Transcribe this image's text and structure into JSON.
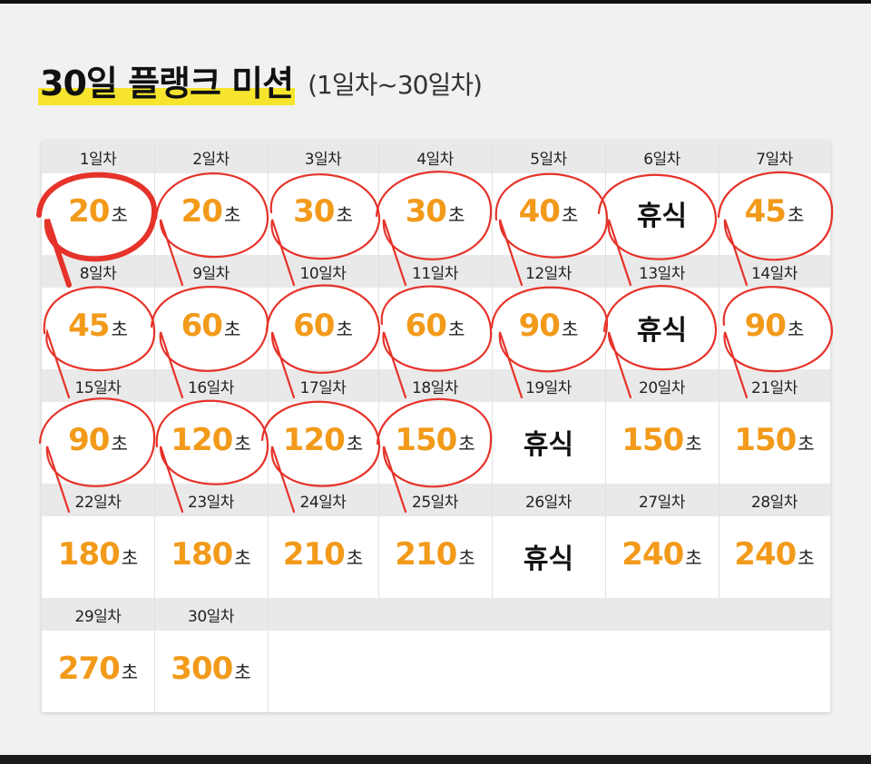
{
  "title": {
    "main": "30일 플랭크 미션",
    "sub": "(1일차~30일차)"
  },
  "unit": "초",
  "colors": {
    "accent": "#f29a1a",
    "highlight": "#f6e52c",
    "pen": "#e5332a"
  },
  "days": [
    {
      "label": "1일차",
      "value": "20"
    },
    {
      "label": "2일차",
      "value": "20"
    },
    {
      "label": "3일차",
      "value": "30"
    },
    {
      "label": "4일차",
      "value": "30"
    },
    {
      "label": "5일차",
      "value": "40"
    },
    {
      "label": "6일차",
      "rest": "휴식"
    },
    {
      "label": "7일차",
      "value": "45"
    },
    {
      "label": "8일차",
      "value": "45"
    },
    {
      "label": "9일차",
      "value": "60"
    },
    {
      "label": "10일차",
      "value": "60"
    },
    {
      "label": "11일차",
      "value": "60"
    },
    {
      "label": "12일차",
      "value": "90"
    },
    {
      "label": "13일차",
      "rest": "휴식"
    },
    {
      "label": "14일차",
      "value": "90"
    },
    {
      "label": "15일차",
      "value": "90"
    },
    {
      "label": "16일차",
      "value": "120"
    },
    {
      "label": "17일차",
      "value": "120"
    },
    {
      "label": "18일차",
      "value": "150"
    },
    {
      "label": "19일차",
      "rest": "휴식"
    },
    {
      "label": "20일차",
      "value": "150"
    },
    {
      "label": "21일차",
      "value": "150"
    },
    {
      "label": "22일차",
      "value": "180"
    },
    {
      "label": "23일차",
      "value": "180"
    },
    {
      "label": "24일차",
      "value": "210"
    },
    {
      "label": "25일차",
      "value": "210"
    },
    {
      "label": "26일차",
      "rest": "휴식"
    },
    {
      "label": "27일차",
      "value": "240"
    },
    {
      "label": "28일차",
      "value": "240"
    },
    {
      "label": "29일차",
      "value": "270"
    },
    {
      "label": "30일차",
      "value": "300"
    }
  ],
  "completed_days": 18
}
